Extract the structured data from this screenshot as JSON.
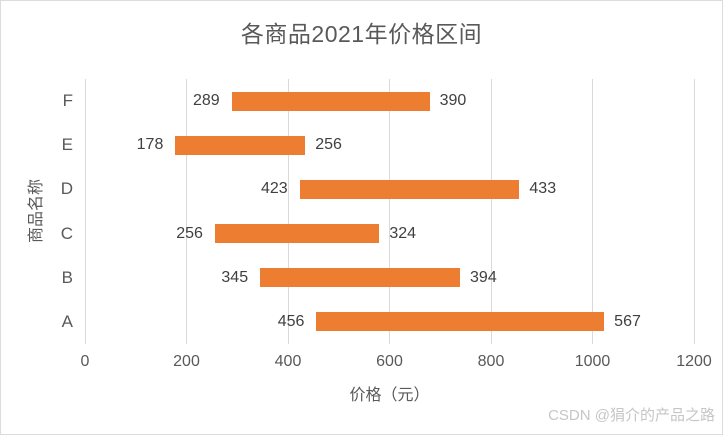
{
  "watermark": {
    "text": "CSDN @狷介的产品之路"
  },
  "chart_data": {
    "type": "bar",
    "orientation": "horizontal",
    "title": "各商品2021年价格区间",
    "xlabel": "价格（元）",
    "ylabel": "商品名称",
    "xlim": [
      0,
      1200
    ],
    "xticks": [
      0,
      200,
      400,
      600,
      800,
      1000,
      1200
    ],
    "grid": "vertical",
    "legend": "none",
    "bar_color": "#ED7D31",
    "gridline_color": "#d9d9d9",
    "categories_top_to_bottom": [
      "F",
      "E",
      "D",
      "C",
      "B",
      "A"
    ],
    "rows": [
      {
        "category": "F",
        "start": 289,
        "span": 390,
        "end": 679,
        "left_label": "289",
        "right_label": "390"
      },
      {
        "category": "E",
        "start": 178,
        "span": 256,
        "end": 434,
        "left_label": "178",
        "right_label": "256"
      },
      {
        "category": "D",
        "start": 423,
        "span": 433,
        "end": 856,
        "left_label": "423",
        "right_label": "433"
      },
      {
        "category": "C",
        "start": 256,
        "span": 324,
        "end": 580,
        "left_label": "256",
        "right_label": "324"
      },
      {
        "category": "B",
        "start": 345,
        "span": 394,
        "end": 739,
        "left_label": "345",
        "right_label": "394"
      },
      {
        "category": "A",
        "start": 456,
        "span": 567,
        "end": 1023,
        "left_label": "456",
        "right_label": "567"
      }
    ]
  }
}
